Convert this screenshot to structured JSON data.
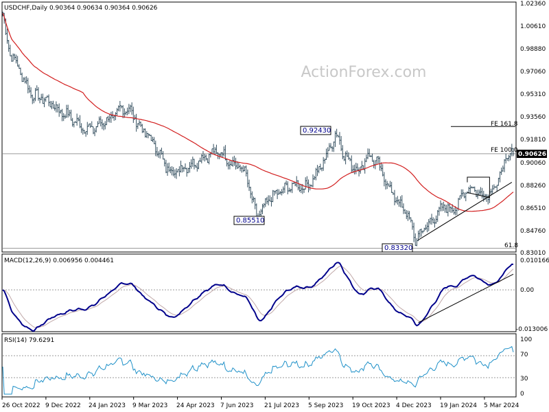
{
  "chart_data": [
    {
      "type": "candlestick",
      "title": "USDCHF,Daily  0.90364 0.90634 0.90364 0.90626",
      "symbol": "USDCHF",
      "timeframe": "Daily",
      "ohlc": {
        "open": 0.90364,
        "high": 0.90634,
        "low": 0.90364,
        "close": 0.90626
      },
      "last_price": "0.90626",
      "watermark": "ActionForex.com",
      "y_ticks": [
        "1.02360",
        "1.00610",
        "0.98880",
        "0.97060",
        "0.95310",
        "0.93560",
        "0.91810",
        "0.90060",
        "0.88260",
        "0.86510",
        "0.84760",
        "0.83010"
      ],
      "ylim": [
        0.8301,
        1.0236
      ],
      "x_ticks": [
        "26 Oct 2022",
        "9 Dec 2022",
        "24 Jan 2023",
        "9 Mar 2023",
        "24 Apr 2023",
        "7 Jun 2023",
        "21 Jul 2023",
        "5 Sep 2023",
        "19 Oct 2023",
        "4 Dec 2023",
        "19 Jan 2024",
        "5 Mar 2024"
      ],
      "price_path": [
        [
          0,
          1.016
        ],
        [
          2,
          1.0
        ],
        [
          5,
          0.985
        ],
        [
          10,
          0.975
        ],
        [
          15,
          0.962
        ],
        [
          20,
          0.952
        ],
        [
          26,
          0.95
        ],
        [
          32,
          0.946
        ],
        [
          38,
          0.94
        ],
        [
          44,
          0.936
        ],
        [
          50,
          0.93
        ],
        [
          56,
          0.926
        ],
        [
          62,
          0.926
        ],
        [
          68,
          0.932
        ],
        [
          74,
          0.934
        ],
        [
          80,
          0.942
        ],
        [
          86,
          0.94
        ],
        [
          92,
          0.928
        ],
        [
          98,
          0.92
        ],
        [
          104,
          0.91
        ],
        [
          110,
          0.896
        ],
        [
          116,
          0.892
        ],
        [
          122,
          0.896
        ],
        [
          128,
          0.898
        ],
        [
          134,
          0.903
        ],
        [
          140,
          0.906
        ],
        [
          146,
          0.908
        ],
        [
          150,
          0.904
        ],
        [
          155,
          0.898
        ],
        [
          160,
          0.896
        ],
        [
          164,
          0.89
        ],
        [
          168,
          0.87
        ],
        [
          171,
          0.858
        ],
        [
          175,
          0.862
        ],
        [
          180,
          0.872
        ],
        [
          186,
          0.876
        ],
        [
          192,
          0.88
        ],
        [
          198,
          0.882
        ],
        [
          204,
          0.88
        ],
        [
          210,
          0.888
        ],
        [
          216,
          0.9
        ],
        [
          220,
          0.91
        ],
        [
          224,
          0.921
        ],
        [
          227,
          0.917
        ],
        [
          230,
          0.905
        ],
        [
          235,
          0.898
        ],
        [
          240,
          0.893
        ],
        [
          246,
          0.905
        ],
        [
          252,
          0.9
        ],
        [
          256,
          0.89
        ],
        [
          262,
          0.876
        ],
        [
          268,
          0.866
        ],
        [
          274,
          0.856
        ],
        [
          278,
          0.838
        ],
        [
          282,
          0.846
        ],
        [
          286,
          0.85
        ],
        [
          292,
          0.858
        ],
        [
          298,
          0.866
        ],
        [
          303,
          0.862
        ],
        [
          308,
          0.87
        ],
        [
          313,
          0.88
        ],
        [
          318,
          0.878
        ],
        [
          323,
          0.874
        ],
        [
          328,
          0.876
        ],
        [
          333,
          0.883
        ],
        [
          336,
          0.893
        ],
        [
          340,
          0.903
        ],
        [
          342,
          0.906
        ]
      ],
      "overlays": [
        {
          "label": "0.92430",
          "value": 0.9243
        },
        {
          "label": "0.85510",
          "value": 0.8551
        },
        {
          "label": "0.83320",
          "value": 0.8332
        },
        {
          "label": "FE 161.8",
          "value": 0.9275
        },
        {
          "label": "FE 100.0",
          "value": 0.9063
        },
        {
          "label": "61.8",
          "value": 0.8325
        }
      ]
    },
    {
      "type": "line",
      "title": "MACD(12,26,9) 0.006956 0.004461",
      "y_ticks": [
        "0.010166",
        "0.00",
        "-0.013006"
      ],
      "ylim": [
        -0.013006,
        0.010166
      ]
    },
    {
      "type": "line",
      "title": "RSI(14) 79.6291",
      "y_ticks": [
        "100",
        "70",
        "30",
        "0"
      ],
      "ylim": [
        0,
        100
      ]
    }
  ]
}
